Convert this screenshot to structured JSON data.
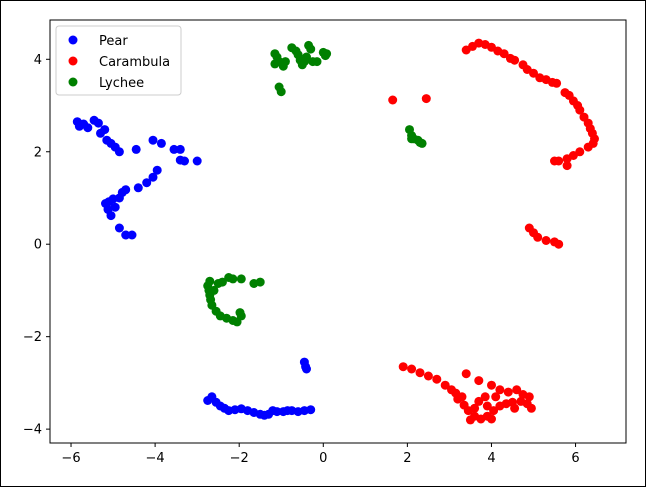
{
  "chart_data": {
    "type": "scatter",
    "title": "",
    "xlabel": "",
    "ylabel": "",
    "xlim": [
      -6.5,
      7.2
    ],
    "ylim": [
      -4.3,
      4.85
    ],
    "xticks": [
      -6,
      -4,
      -2,
      0,
      2,
      4,
      6
    ],
    "yticks": [
      -4,
      -2,
      0,
      2,
      4
    ],
    "xtick_labels": [
      "−6",
      "−4",
      "−2",
      "0",
      "2",
      "4",
      "6"
    ],
    "ytick_labels": [
      "−4",
      "−2",
      "0",
      "2",
      "4"
    ],
    "grid": false,
    "legend": "top-left",
    "series": [
      {
        "name": "Pear",
        "color": "#0000ff",
        "points": [
          [
            -5.85,
            2.65
          ],
          [
            -5.8,
            2.55
          ],
          [
            -5.7,
            2.6
          ],
          [
            -5.6,
            2.52
          ],
          [
            -5.45,
            2.68
          ],
          [
            -5.35,
            2.62
          ],
          [
            -5.3,
            2.4
          ],
          [
            -5.2,
            2.48
          ],
          [
            -5.15,
            2.25
          ],
          [
            -5.05,
            2.18
          ],
          [
            -4.95,
            2.1
          ],
          [
            -4.85,
            2.0
          ],
          [
            -4.45,
            2.05
          ],
          [
            -4.05,
            2.25
          ],
          [
            -3.85,
            2.18
          ],
          [
            -3.55,
            2.05
          ],
          [
            -3.4,
            2.05
          ],
          [
            -3.3,
            1.8
          ],
          [
            -3.4,
            1.82
          ],
          [
            -3.0,
            1.8
          ],
          [
            -3.95,
            1.6
          ],
          [
            -4.05,
            1.45
          ],
          [
            -4.2,
            1.33
          ],
          [
            -4.4,
            1.22
          ],
          [
            -4.7,
            1.18
          ],
          [
            -4.78,
            1.12
          ],
          [
            -4.85,
            1.0
          ],
          [
            -5.0,
            0.98
          ],
          [
            -5.1,
            0.92
          ],
          [
            -5.18,
            0.88
          ],
          [
            -5.12,
            0.75
          ],
          [
            -5.05,
            0.62
          ],
          [
            -4.95,
            0.8
          ],
          [
            -4.85,
            0.35
          ],
          [
            -4.7,
            0.2
          ],
          [
            -4.55,
            0.2
          ],
          [
            -2.75,
            -3.38
          ],
          [
            -2.65,
            -3.3
          ],
          [
            -2.55,
            -3.42
          ],
          [
            -2.45,
            -3.5
          ],
          [
            -2.35,
            -3.55
          ],
          [
            -2.25,
            -3.6
          ],
          [
            -2.1,
            -3.58
          ],
          [
            -1.95,
            -3.56
          ],
          [
            -1.8,
            -3.6
          ],
          [
            -1.65,
            -3.64
          ],
          [
            -1.5,
            -3.68
          ],
          [
            -1.4,
            -3.7
          ],
          [
            -1.3,
            -3.68
          ],
          [
            -1.2,
            -3.6
          ],
          [
            -1.1,
            -3.62
          ],
          [
            -0.95,
            -3.62
          ],
          [
            -0.85,
            -3.6
          ],
          [
            -0.75,
            -3.6
          ],
          [
            -0.6,
            -3.62
          ],
          [
            -0.45,
            -3.6
          ],
          [
            -0.3,
            -3.58
          ],
          [
            -0.45,
            -2.55
          ],
          [
            -0.42,
            -2.65
          ],
          [
            -0.4,
            -2.7
          ]
        ]
      },
      {
        "name": "Carambula",
        "color": "#ff0000",
        "points": [
          [
            3.4,
            4.2
          ],
          [
            3.55,
            4.28
          ],
          [
            3.7,
            4.35
          ],
          [
            3.85,
            4.32
          ],
          [
            4.0,
            4.26
          ],
          [
            4.15,
            4.18
          ],
          [
            4.3,
            4.12
          ],
          [
            4.45,
            4.02
          ],
          [
            4.55,
            3.98
          ],
          [
            4.75,
            3.88
          ],
          [
            4.85,
            3.78
          ],
          [
            5.0,
            3.7
          ],
          [
            5.15,
            3.6
          ],
          [
            5.3,
            3.56
          ],
          [
            5.45,
            3.5
          ],
          [
            5.55,
            3.48
          ],
          [
            5.75,
            3.28
          ],
          [
            5.85,
            3.22
          ],
          [
            5.95,
            3.1
          ],
          [
            6.05,
            3.0
          ],
          [
            6.1,
            2.9
          ],
          [
            6.2,
            2.75
          ],
          [
            6.3,
            2.62
          ],
          [
            6.35,
            2.5
          ],
          [
            6.4,
            2.4
          ],
          [
            6.45,
            2.28
          ],
          [
            6.42,
            2.18
          ],
          [
            6.3,
            2.1
          ],
          [
            6.1,
            2.0
          ],
          [
            5.95,
            1.92
          ],
          [
            5.8,
            1.85
          ],
          [
            5.6,
            1.8
          ],
          [
            5.5,
            1.8
          ],
          [
            5.8,
            1.7
          ],
          [
            1.65,
            3.12
          ],
          [
            2.45,
            3.15
          ],
          [
            4.9,
            0.35
          ],
          [
            5.0,
            0.25
          ],
          [
            5.1,
            0.15
          ],
          [
            5.3,
            0.08
          ],
          [
            5.5,
            0.05
          ],
          [
            5.6,
            0.0
          ],
          [
            1.9,
            -2.65
          ],
          [
            2.1,
            -2.7
          ],
          [
            2.3,
            -2.78
          ],
          [
            2.5,
            -2.85
          ],
          [
            2.7,
            -2.92
          ],
          [
            2.9,
            -3.05
          ],
          [
            3.05,
            -3.15
          ],
          [
            3.15,
            -3.22
          ],
          [
            3.2,
            -3.35
          ],
          [
            3.35,
            -3.48
          ],
          [
            3.45,
            -3.6
          ],
          [
            3.6,
            -3.72
          ],
          [
            3.75,
            -3.78
          ],
          [
            3.9,
            -3.72
          ],
          [
            4.05,
            -3.6
          ],
          [
            4.2,
            -3.5
          ],
          [
            4.35,
            -3.45
          ],
          [
            4.5,
            -3.42
          ],
          [
            4.7,
            -3.4
          ],
          [
            4.85,
            -3.45
          ],
          [
            4.95,
            -3.55
          ],
          [
            4.75,
            -3.25
          ],
          [
            4.6,
            -3.15
          ],
          [
            4.4,
            -3.2
          ],
          [
            4.2,
            -3.15
          ],
          [
            4.0,
            -3.05
          ],
          [
            3.7,
            -2.95
          ],
          [
            3.4,
            -2.8
          ],
          [
            3.7,
            -3.4
          ],
          [
            3.9,
            -3.5
          ],
          [
            4.1,
            -3.3
          ],
          [
            3.5,
            -3.8
          ],
          [
            3.3,
            -3.3
          ],
          [
            4.0,
            -3.78
          ],
          [
            3.6,
            -3.55
          ],
          [
            4.55,
            -3.55
          ],
          [
            4.9,
            -3.3
          ],
          [
            3.85,
            -3.3
          ]
        ]
      },
      {
        "name": "Lychee",
        "color": "#008000",
        "points": [
          [
            -1.15,
            4.12
          ],
          [
            -1.1,
            4.05
          ],
          [
            -1.05,
            3.95
          ],
          [
            -1.15,
            3.9
          ],
          [
            -0.95,
            3.85
          ],
          [
            -0.9,
            3.95
          ],
          [
            -0.75,
            4.25
          ],
          [
            -0.65,
            4.18
          ],
          [
            -0.6,
            4.1
          ],
          [
            -0.55,
            3.98
          ],
          [
            -0.45,
            3.95
          ],
          [
            -0.5,
            3.88
          ],
          [
            -0.35,
            4.3
          ],
          [
            -0.3,
            4.22
          ],
          [
            -0.4,
            4.05
          ],
          [
            -0.25,
            3.95
          ],
          [
            -0.15,
            3.95
          ],
          [
            0.0,
            4.15
          ],
          [
            0.08,
            4.12
          ],
          [
            0.05,
            4.08
          ],
          [
            -1.05,
            3.4
          ],
          [
            -1.0,
            3.3
          ],
          [
            2.05,
            2.48
          ],
          [
            2.1,
            2.35
          ],
          [
            2.15,
            2.28
          ],
          [
            2.25,
            2.25
          ],
          [
            2.3,
            2.2
          ],
          [
            2.35,
            2.18
          ],
          [
            2.1,
            2.28
          ],
          [
            -2.7,
            -0.8
          ],
          [
            -2.75,
            -0.9
          ],
          [
            -2.72,
            -1.0
          ],
          [
            -2.7,
            -1.1
          ],
          [
            -2.68,
            -1.2
          ],
          [
            -2.65,
            -1.32
          ],
          [
            -2.55,
            -1.45
          ],
          [
            -2.45,
            -1.55
          ],
          [
            -2.3,
            -1.6
          ],
          [
            -2.15,
            -1.65
          ],
          [
            -2.05,
            -1.68
          ],
          [
            -1.95,
            -1.55
          ],
          [
            -1.98,
            -1.48
          ],
          [
            -2.5,
            -0.85
          ],
          [
            -2.4,
            -0.82
          ],
          [
            -2.25,
            -0.72
          ],
          [
            -2.15,
            -0.75
          ],
          [
            -1.95,
            -0.75
          ],
          [
            -1.65,
            -0.85
          ],
          [
            -1.5,
            -0.82
          ],
          [
            -2.6,
            -1.0
          ]
        ]
      }
    ]
  }
}
